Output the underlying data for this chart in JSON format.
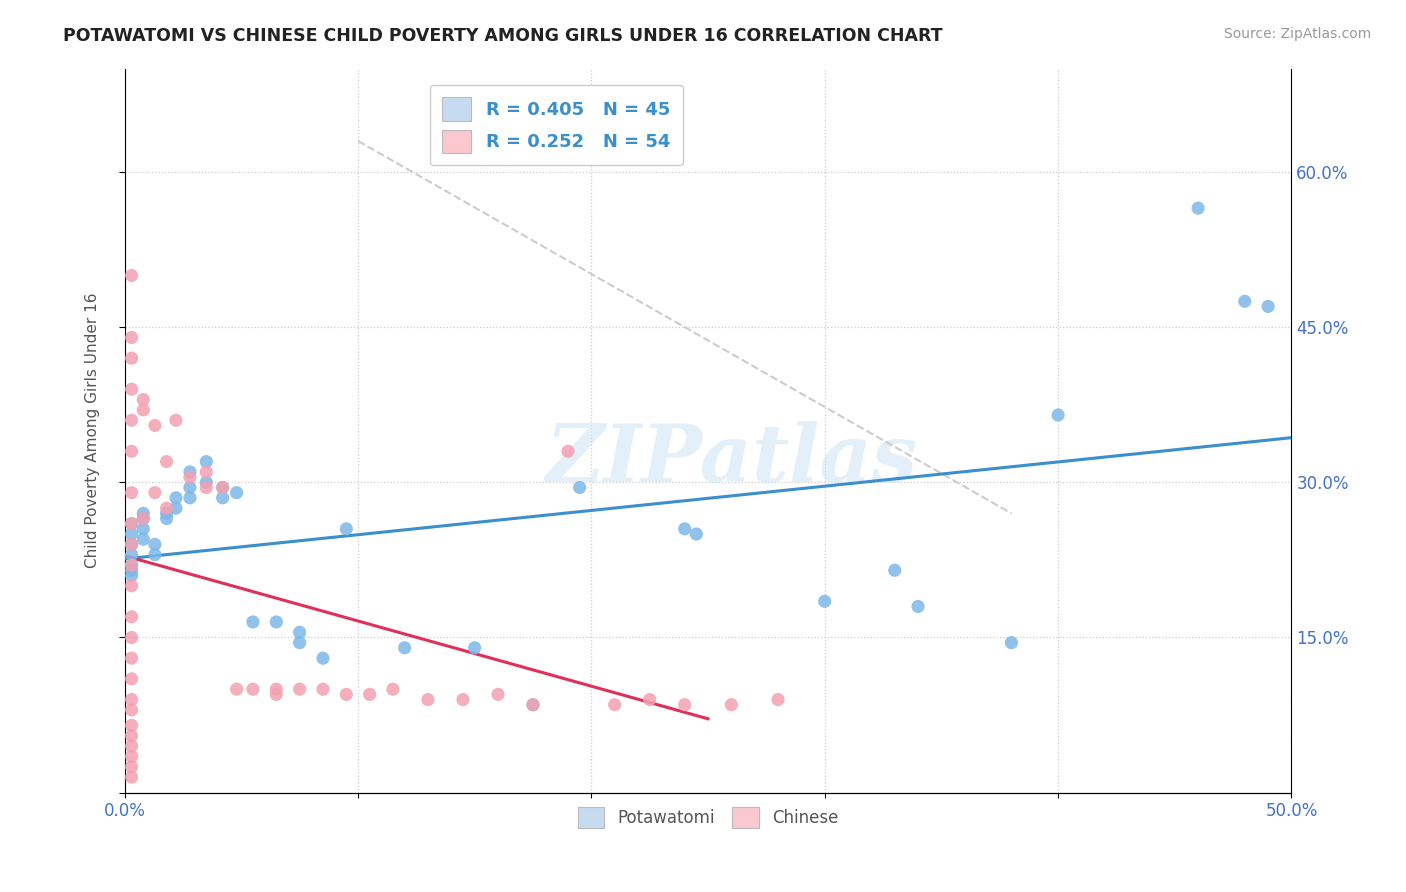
{
  "title": "POTAWATOMI VS CHINESE CHILD POVERTY AMONG GIRLS UNDER 16 CORRELATION CHART",
  "source": "Source: ZipAtlas.com",
  "ylabel": "Child Poverty Among Girls Under 16",
  "xlim": [
    0.0,
    0.5
  ],
  "ylim": [
    0.0,
    0.7
  ],
  "potawatomi_R": 0.405,
  "potawatomi_N": 45,
  "chinese_R": 0.252,
  "chinese_N": 54,
  "blue_color": "#7db8e8",
  "pink_color": "#f4a0b0",
  "blue_fill": "#c6dbef",
  "pink_fill": "#fcc8d0",
  "line_blue": "#3a8fcc",
  "line_pink": "#e0305a",
  "diagonal_color": "#cccccc",
  "potawatomi_x": [
    0.003,
    0.003,
    0.003,
    0.003,
    0.003,
    0.003,
    0.003,
    0.008,
    0.008,
    0.008,
    0.008,
    0.013,
    0.013,
    0.018,
    0.018,
    0.022,
    0.022,
    0.028,
    0.028,
    0.028,
    0.035,
    0.035,
    0.042,
    0.042,
    0.048,
    0.055,
    0.065,
    0.075,
    0.075,
    0.085,
    0.095,
    0.12,
    0.15,
    0.175,
    0.195,
    0.24,
    0.245,
    0.3,
    0.33,
    0.34,
    0.38,
    0.4,
    0.46,
    0.48,
    0.49
  ],
  "potawatomi_y": [
    0.26,
    0.25,
    0.24,
    0.23,
    0.22,
    0.215,
    0.21,
    0.27,
    0.265,
    0.255,
    0.245,
    0.24,
    0.23,
    0.27,
    0.265,
    0.285,
    0.275,
    0.31,
    0.295,
    0.285,
    0.32,
    0.3,
    0.295,
    0.285,
    0.29,
    0.165,
    0.165,
    0.155,
    0.145,
    0.13,
    0.255,
    0.14,
    0.14,
    0.085,
    0.295,
    0.255,
    0.25,
    0.185,
    0.215,
    0.18,
    0.145,
    0.365,
    0.565,
    0.475,
    0.47
  ],
  "chinese_x": [
    0.003,
    0.003,
    0.003,
    0.003,
    0.003,
    0.003,
    0.003,
    0.003,
    0.003,
    0.003,
    0.003,
    0.003,
    0.003,
    0.003,
    0.003,
    0.003,
    0.003,
    0.003,
    0.003,
    0.003,
    0.003,
    0.003,
    0.003,
    0.008,
    0.008,
    0.008,
    0.013,
    0.013,
    0.018,
    0.018,
    0.022,
    0.028,
    0.035,
    0.035,
    0.042,
    0.048,
    0.055,
    0.065,
    0.065,
    0.075,
    0.085,
    0.095,
    0.105,
    0.115,
    0.13,
    0.145,
    0.16,
    0.175,
    0.19,
    0.21,
    0.225,
    0.24,
    0.26,
    0.28
  ],
  "chinese_y": [
    0.5,
    0.44,
    0.42,
    0.39,
    0.36,
    0.33,
    0.29,
    0.26,
    0.24,
    0.22,
    0.2,
    0.17,
    0.15,
    0.13,
    0.11,
    0.09,
    0.08,
    0.065,
    0.055,
    0.045,
    0.035,
    0.025,
    0.015,
    0.38,
    0.37,
    0.265,
    0.355,
    0.29,
    0.32,
    0.275,
    0.36,
    0.305,
    0.31,
    0.295,
    0.295,
    0.1,
    0.1,
    0.1,
    0.095,
    0.1,
    0.1,
    0.095,
    0.095,
    0.1,
    0.09,
    0.09,
    0.095,
    0.085,
    0.33,
    0.085,
    0.09,
    0.085,
    0.085,
    0.09
  ],
  "watermark": "ZIPatlas",
  "background": "#ffffff"
}
